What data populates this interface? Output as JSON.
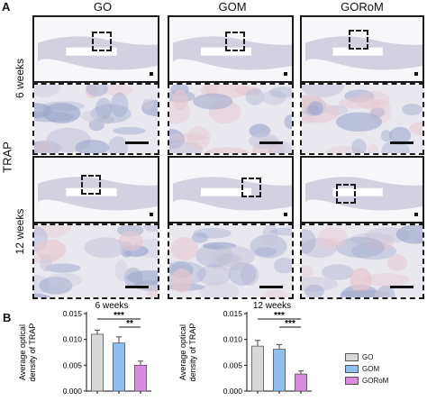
{
  "figure": {
    "panel_a": "A",
    "panel_b": "B",
    "stain_label": "TRAP",
    "columns": [
      "GO",
      "GOM",
      "GORoM"
    ],
    "rows": [
      "6 weeks",
      "12 weeks"
    ]
  },
  "chart_data": [
    {
      "type": "bar",
      "title": "6 weeks",
      "ylabel": "Average optical density of TRAP",
      "categories": [
        "GO",
        "GOM",
        "GORoM"
      ],
      "values": [
        0.011,
        0.0093,
        0.005
      ],
      "errors": [
        0.0008,
        0.0012,
        0.0008
      ],
      "ylim": [
        0,
        0.015
      ],
      "yticks": [
        "0.000",
        "0.005",
        "0.010",
        "0.015"
      ],
      "significance": [
        {
          "from": "GO",
          "to": "GORoM",
          "label": "***"
        },
        {
          "from": "GOM",
          "to": "GORoM",
          "label": "**"
        }
      ]
    },
    {
      "type": "bar",
      "title": "12 weeks",
      "ylabel": "Average optical density of TRAP",
      "categories": [
        "GO",
        "GOM",
        "GORoM"
      ],
      "values": [
        0.0087,
        0.0081,
        0.0033
      ],
      "errors": [
        0.0011,
        0.0009,
        0.0006
      ],
      "ylim": [
        0,
        0.015
      ],
      "yticks": [
        "0.000",
        "0.005",
        "0.010",
        "0.015"
      ],
      "significance": [
        {
          "from": "GO",
          "to": "GORoM",
          "label": "***"
        },
        {
          "from": "GOM",
          "to": "GORoM",
          "label": "***"
        }
      ]
    }
  ],
  "legend": {
    "entries": [
      {
        "label": "GO",
        "color": "#d9d9d9"
      },
      {
        "label": "GOM",
        "color": "#8ec1f2"
      },
      {
        "label": "GORoM",
        "color": "#d98be0"
      }
    ]
  },
  "colors": {
    "tissue_light": "#e9e8ef",
    "tissue_mid": "#c9c6da",
    "tissue_blue": "#9ea8cc",
    "tissue_pink": "#e6c7cf",
    "frame": "#1a1a1a"
  }
}
